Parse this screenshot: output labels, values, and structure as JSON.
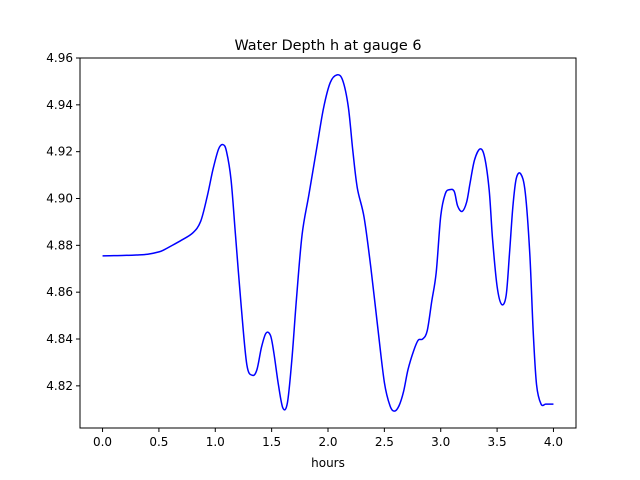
{
  "chart_data": {
    "type": "line",
    "title": "Water Depth h at gauge 6",
    "xlabel": "hours",
    "ylabel": "",
    "xlim": [
      -0.2,
      4.2
    ],
    "ylim": [
      4.802,
      4.96
    ],
    "x_ticks": [
      0.0,
      0.5,
      1.0,
      1.5,
      2.0,
      2.5,
      3.0,
      3.5,
      4.0
    ],
    "x_tick_labels": [
      "0.0",
      "0.5",
      "1.0",
      "1.5",
      "2.0",
      "2.5",
      "3.0",
      "3.5",
      "4.0"
    ],
    "y_ticks": [
      4.82,
      4.84,
      4.86,
      4.88,
      4.9,
      4.92,
      4.94,
      4.96
    ],
    "y_tick_labels": [
      "4.82",
      "4.84",
      "4.86",
      "4.88",
      "4.90",
      "4.92",
      "4.94",
      "4.96"
    ],
    "grid": false,
    "legend": "none",
    "series": [
      {
        "color": "#0000ff",
        "x": [
          0.0,
          0.1,
          0.2,
          0.3,
          0.4,
          0.5,
          0.55,
          0.6,
          0.7,
          0.8,
          0.87,
          0.93,
          0.98,
          1.03,
          1.07,
          1.1,
          1.14,
          1.18,
          1.23,
          1.28,
          1.33,
          1.37,
          1.41,
          1.45,
          1.49,
          1.52,
          1.56,
          1.6,
          1.64,
          1.68,
          1.72,
          1.77,
          1.83,
          1.9,
          1.96,
          2.02,
          2.08,
          2.13,
          2.18,
          2.22,
          2.26,
          2.32,
          2.38,
          2.44,
          2.5,
          2.55,
          2.59,
          2.63,
          2.67,
          2.71,
          2.76,
          2.8,
          2.84,
          2.88,
          2.92,
          2.96,
          3.0,
          3.04,
          3.08,
          3.12,
          3.15,
          3.19,
          3.23,
          3.26,
          3.3,
          3.35,
          3.39,
          3.43,
          3.46,
          3.5,
          3.54,
          3.58,
          3.61,
          3.64,
          3.67,
          3.71,
          3.75,
          3.79,
          3.82,
          3.85,
          3.89,
          3.93,
          3.97,
          4.0
        ],
        "y": [
          4.8755,
          4.8756,
          4.8757,
          4.8759,
          4.8762,
          4.8772,
          4.8782,
          4.8795,
          4.8822,
          4.8853,
          4.8902,
          4.9012,
          4.9125,
          4.9212,
          4.923,
          4.92,
          4.908,
          4.884,
          4.854,
          4.829,
          4.8245,
          4.827,
          4.8365,
          4.8425,
          4.8415,
          4.834,
          4.8205,
          4.8105,
          4.8128,
          4.8315,
          4.857,
          4.8845,
          4.9015,
          4.9215,
          4.9385,
          4.9495,
          4.9528,
          4.9505,
          4.9392,
          4.9205,
          4.9045,
          4.892,
          4.8705,
          4.8455,
          4.8215,
          4.8115,
          4.8092,
          4.8115,
          4.8175,
          4.827,
          4.835,
          4.8395,
          4.84,
          4.8435,
          4.856,
          4.8685,
          4.8925,
          4.902,
          4.9038,
          4.903,
          4.8968,
          4.8945,
          4.8985,
          4.9065,
          4.9165,
          4.9212,
          4.9175,
          4.9035,
          4.8825,
          4.8625,
          4.8548,
          4.8585,
          4.8765,
          4.8965,
          4.9085,
          4.9105,
          4.9025,
          4.8765,
          4.8435,
          4.8205,
          4.8122,
          4.8122,
          4.8122,
          4.8122
        ]
      }
    ]
  }
}
